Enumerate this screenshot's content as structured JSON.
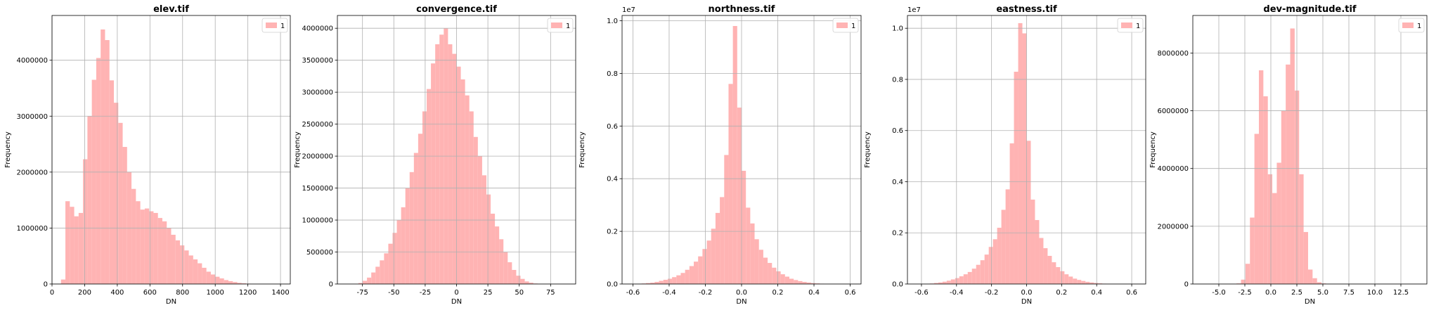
{
  "colors": {
    "bar": "#ffb3b3",
    "grid": "#b0b0b0",
    "axis": "#000000"
  },
  "chart_data": [
    {
      "type": "bar",
      "title": "elev.tif",
      "xlabel": "DN",
      "ylabel": "Frequency",
      "legend": "1",
      "legend_loc": "top-right",
      "grid": true,
      "xlim": [
        0,
        1460
      ],
      "ylim": [
        0,
        4800000
      ],
      "xticks": [
        0,
        200,
        400,
        600,
        800,
        1000,
        1200,
        1400
      ],
      "yticks": [
        0,
        1000000,
        2000000,
        3000000,
        4000000
      ],
      "y_offset": "",
      "bin_start": 55,
      "bin_width": 27,
      "values": [
        80000,
        1480000,
        1380000,
        1210000,
        1270000,
        2230000,
        3000000,
        3650000,
        4040000,
        4550000,
        4360000,
        3640000,
        3240000,
        2880000,
        2450000,
        2000000,
        1700000,
        1480000,
        1330000,
        1350000,
        1300000,
        1270000,
        1180000,
        1120000,
        1000000,
        880000,
        780000,
        690000,
        600000,
        510000,
        440000,
        370000,
        290000,
        220000,
        170000,
        130000,
        100000,
        70000,
        50000,
        35000,
        20000,
        12000,
        7000,
        4000,
        2000,
        1000,
        500,
        200,
        100,
        50
      ]
    },
    {
      "type": "bar",
      "title": "convergence.tif",
      "xlabel": "DN",
      "ylabel": "Frequency",
      "legend": "1",
      "legend_loc": "top-right",
      "grid": true,
      "xlim": [
        -95,
        95
      ],
      "ylim": [
        0,
        4200000
      ],
      "xticks": [
        -75,
        -50,
        -25,
        0,
        25,
        50,
        75
      ],
      "yticks": [
        0,
        500000,
        1000000,
        1500000,
        2000000,
        2500000,
        3000000,
        3500000,
        4000000
      ],
      "y_offset": "",
      "bin_start": -85,
      "bin_width": 3.4,
      "values": [
        500,
        5000,
        15000,
        50000,
        100000,
        180000,
        270000,
        370000,
        480000,
        630000,
        800000,
        1000000,
        1200000,
        1500000,
        1750000,
        2050000,
        2350000,
        2700000,
        3050000,
        3450000,
        3750000,
        3900000,
        4000000,
        3750000,
        3600000,
        3400000,
        3200000,
        2950000,
        2700000,
        2300000,
        2000000,
        1700000,
        1400000,
        1100000,
        900000,
        700000,
        500000,
        340000,
        220000,
        130000,
        80000,
        40000,
        20000,
        8000,
        3000,
        1000,
        500,
        200,
        100,
        50
      ]
    },
    {
      "type": "bar",
      "title": "northness.tif",
      "xlabel": "DN",
      "ylabel": "Frequency",
      "legend": "1",
      "legend_loc": "top-right",
      "grid": true,
      "xlim": [
        -0.66,
        0.66
      ],
      "ylim": [
        0,
        10200000
      ],
      "xticks": [
        -0.6,
        -0.4,
        -0.2,
        0.0,
        0.2,
        0.4,
        0.6
      ],
      "ytick_labels": [
        "0.0",
        "0.2",
        "0.4",
        "0.6",
        "0.8",
        "1.0"
      ],
      "yticks": [
        0,
        2000000,
        4000000,
        6000000,
        8000000,
        10000000
      ],
      "y_offset": "1e7",
      "bin_start": -0.6,
      "bin_width": 0.024,
      "values": [
        5000,
        10000,
        20000,
        35000,
        50000,
        80000,
        120000,
        160000,
        200000,
        260000,
        330000,
        420000,
        540000,
        680000,
        850000,
        1050000,
        1330000,
        1650000,
        2100000,
        2700000,
        3300000,
        4900000,
        7600000,
        9800000,
        6700000,
        4300000,
        2900000,
        2300000,
        1700000,
        1300000,
        1000000,
        800000,
        620000,
        480000,
        370000,
        280000,
        200000,
        150000,
        110000,
        80000,
        55000,
        35000,
        22000,
        14000,
        9000,
        5000,
        3000,
        2000,
        1000,
        500
      ]
    },
    {
      "type": "bar",
      "title": "eastness.tif",
      "xlabel": "DN",
      "ylabel": "Frequency",
      "legend": "1",
      "legend_loc": "top-right",
      "grid": true,
      "xlim": [
        -0.68,
        0.68
      ],
      "ylim": [
        0,
        10500000
      ],
      "xticks": [
        -0.6,
        -0.4,
        -0.2,
        0.0,
        0.2,
        0.4,
        0.6
      ],
      "ytick_labels": [
        "0.0",
        "0.2",
        "0.4",
        "0.6",
        "0.8",
        "1.0"
      ],
      "yticks": [
        0,
        2000000,
        4000000,
        6000000,
        8000000,
        10000000
      ],
      "y_offset": "1e7",
      "bin_start": -0.6,
      "bin_width": 0.024,
      "values": [
        5000,
        10000,
        20000,
        40000,
        60000,
        90000,
        130000,
        180000,
        230000,
        300000,
        380000,
        470000,
        600000,
        750000,
        930000,
        1150000,
        1450000,
        1750000,
        2200000,
        2900000,
        3700000,
        5500000,
        8300000,
        10200000,
        9800000,
        5600000,
        3300000,
        2500000,
        1800000,
        1400000,
        1100000,
        850000,
        660000,
        500000,
        380000,
        290000,
        210000,
        160000,
        120000,
        85000,
        60000,
        40000,
        25000,
        15000,
        9000,
        5000,
        3000,
        2000,
        1000,
        500
      ]
    },
    {
      "type": "bar",
      "title": "dev-magnitude.tif",
      "xlabel": "DN",
      "ylabel": "Frequency",
      "legend": "1",
      "legend_loc": "top-right",
      "grid": true,
      "xlim": [
        -7.5,
        15.0
      ],
      "ylim": [
        0,
        9300000
      ],
      "xticks": [
        -5.0,
        -2.5,
        0.0,
        2.5,
        5.0,
        7.5,
        10.0,
        12.5
      ],
      "yticks": [
        0,
        2000000,
        4000000,
        6000000,
        8000000
      ],
      "y_offset": "",
      "bin_start": -3.3,
      "bin_width": 0.43,
      "values": [
        20000,
        150000,
        700000,
        2300000,
        5200000,
        7400000,
        6500000,
        3800000,
        3150000,
        4200000,
        6000000,
        7600000,
        8850000,
        6700000,
        3800000,
        1800000,
        500000,
        200000,
        60000,
        20000,
        8000,
        3000,
        1000,
        500,
        200,
        100,
        50,
        20,
        10,
        5
      ]
    }
  ]
}
